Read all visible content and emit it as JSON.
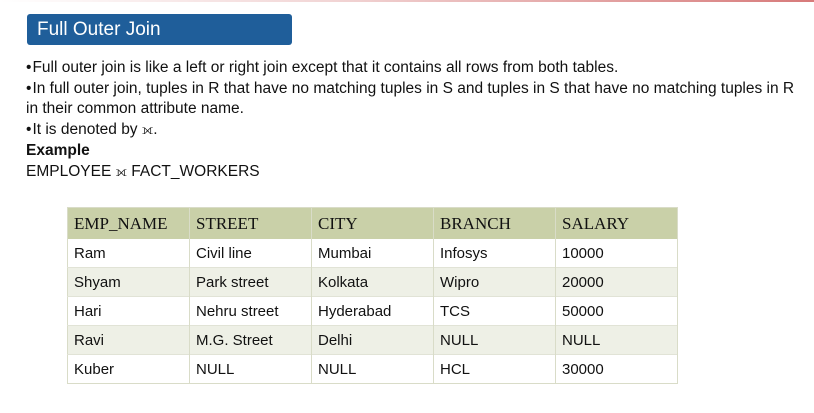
{
  "slide": {
    "title": "Full Outer Join",
    "bullets": [
      {
        "marker": "•",
        "text": "Full outer join is like a left or right join except that it contains all rows from both tables."
      },
      {
        "marker": "•",
        "text": "In full outer join, tuples in R that have no matching tuples in S and tuples in S that have no matching tuples in R in their common attribute name."
      },
      {
        "marker": "•",
        "text_before": "It is denoted by ",
        "symbol": "⟗",
        "text_after": "."
      }
    ],
    "example_heading": "Example",
    "example_expression": {
      "left": "EMPLOYEE ",
      "symbol": "⟗",
      "right": " FACT_WORKERS"
    }
  },
  "table": {
    "columns": [
      "EMP_NAME",
      "STREET",
      "CITY",
      "BRANCH",
      "SALARY"
    ],
    "rows": [
      [
        "Ram",
        "Civil line",
        "Mumbai",
        "Infosys",
        "10000"
      ],
      [
        "Shyam",
        "Park street",
        "Kolkata",
        "Wipro",
        "20000"
      ],
      [
        "Hari",
        "Nehru street",
        "Hyderabad",
        "TCS",
        "50000"
      ],
      [
        "Ravi",
        "M.G. Street",
        "Delhi",
        "NULL",
        "NULL"
      ],
      [
        "Kuber",
        "NULL",
        "NULL",
        "HCL",
        "30000"
      ]
    ]
  },
  "colors": {
    "title_background": "#1f5e9a",
    "title_text": "#ffffff",
    "table_header_background": "#c9d0a8",
    "table_stripe": "#eef0e6"
  }
}
